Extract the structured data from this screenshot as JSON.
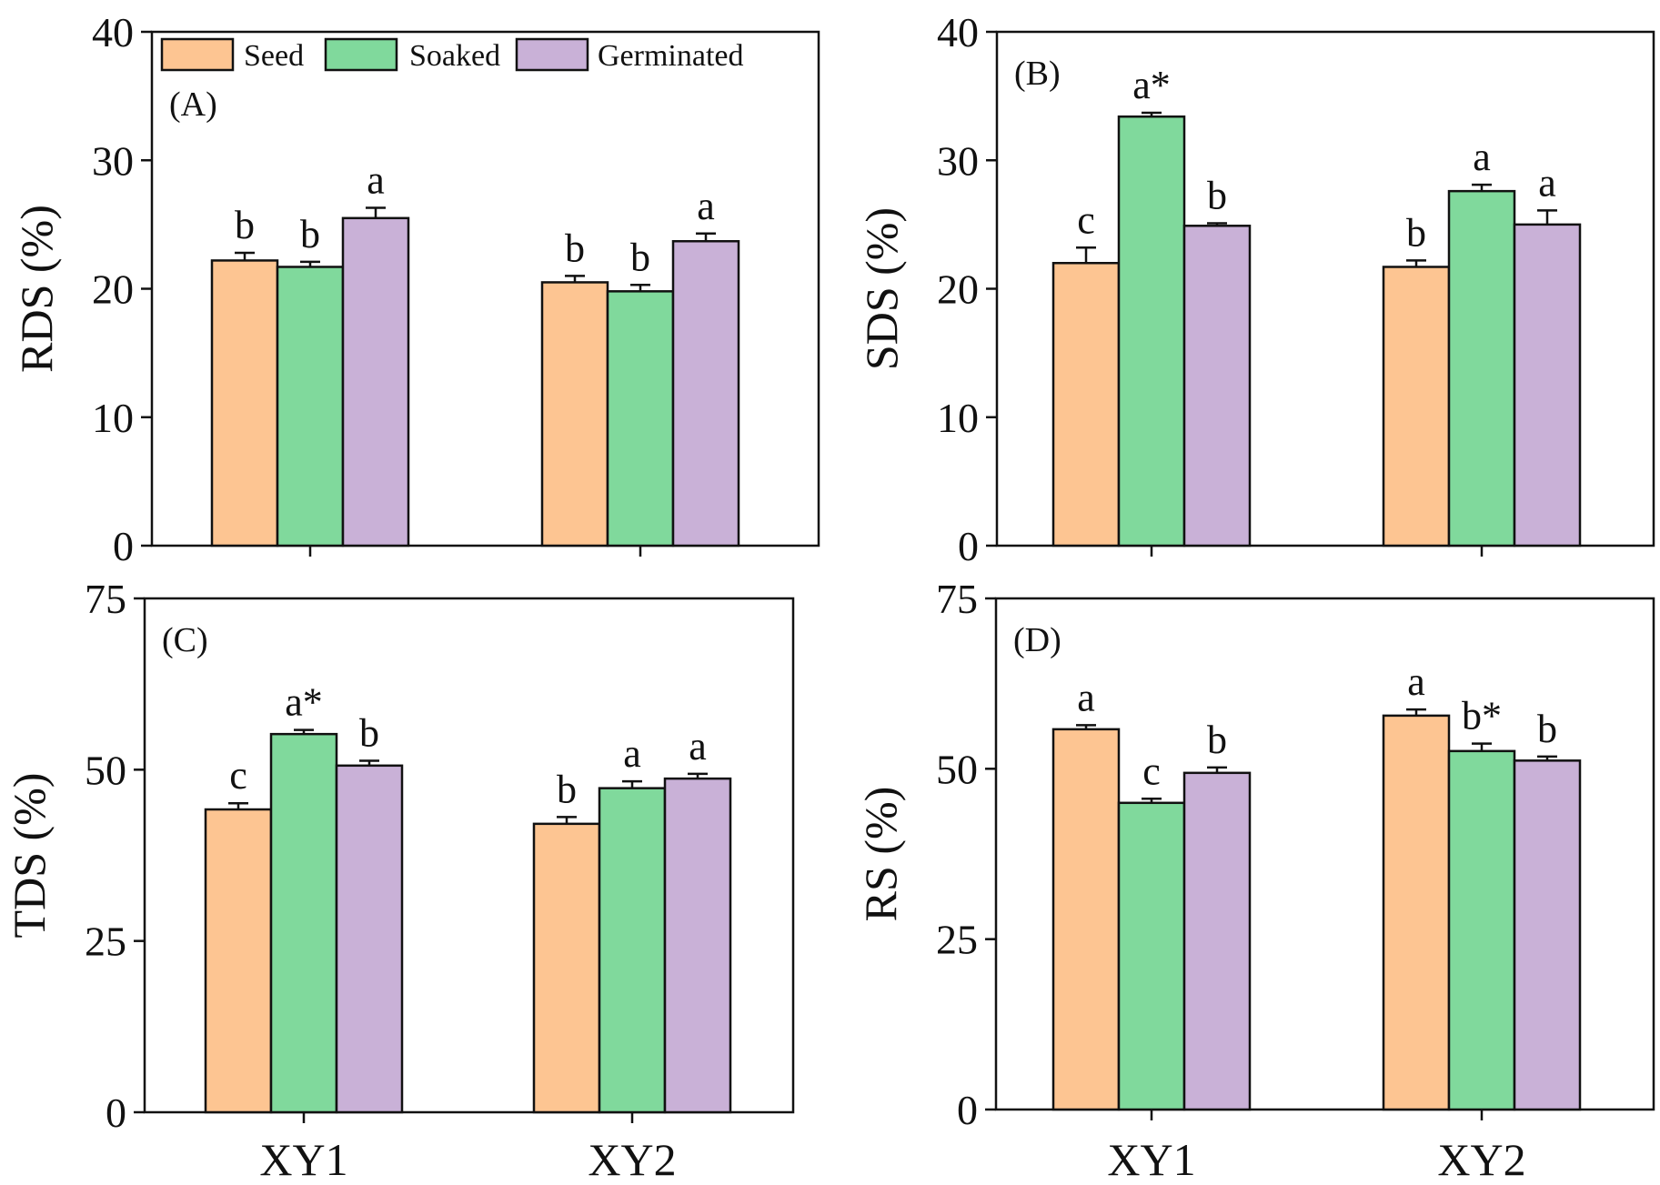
{
  "chart_data": [
    {
      "type": "bar",
      "panel_label": "(A)",
      "ylabel": "RDS (%)",
      "ylim": [
        0,
        40
      ],
      "yticks": [
        "0",
        "10",
        "20",
        "30",
        "40"
      ],
      "xtick_labels": [
        "",
        ""
      ],
      "categories": [
        "XY1",
        "XY2"
      ],
      "legend": "top-left",
      "series": [
        {
          "name": "Seed",
          "values": [
            22.2,
            20.5
          ],
          "errors": [
            0.6,
            0.5
          ],
          "sig": [
            "b",
            "b"
          ]
        },
        {
          "name": "Soaked",
          "values": [
            21.7,
            19.8
          ],
          "errors": [
            0.4,
            0.5
          ],
          "sig": [
            "b",
            "b"
          ]
        },
        {
          "name": "Germinated",
          "values": [
            25.5,
            23.7
          ],
          "errors": [
            0.8,
            0.6
          ],
          "sig": [
            "a",
            "a"
          ]
        }
      ]
    },
    {
      "type": "bar",
      "panel_label": "(B)",
      "ylabel": "SDS (%)",
      "ylim": [
        0,
        40
      ],
      "yticks": [
        "0",
        "10",
        "20",
        "30",
        "40"
      ],
      "xtick_labels": [
        "",
        ""
      ],
      "categories": [
        "XY1",
        "XY2"
      ],
      "series": [
        {
          "name": "Seed",
          "values": [
            22.0,
            21.7
          ],
          "errors": [
            1.2,
            0.5
          ],
          "sig": [
            "c",
            "b"
          ]
        },
        {
          "name": "Soaked",
          "values": [
            33.4,
            27.6
          ],
          "errors": [
            0.3,
            0.5
          ],
          "sig": [
            "a*",
            "a"
          ]
        },
        {
          "name": "Germinated",
          "values": [
            24.9,
            25.0
          ],
          "errors": [
            0.2,
            1.1
          ],
          "sig": [
            "b",
            "a"
          ]
        }
      ]
    },
    {
      "type": "bar",
      "panel_label": "(C)",
      "ylabel": "TDS (%)",
      "ylim": [
        0,
        75
      ],
      "yticks": [
        "0",
        "25",
        "50",
        "75"
      ],
      "xtick_labels": [
        "XY1",
        "XY2"
      ],
      "categories": [
        "XY1",
        "XY2"
      ],
      "series": [
        {
          "name": "Seed",
          "values": [
            44.2,
            42.1
          ],
          "errors": [
            0.9,
            1.0
          ],
          "sig": [
            "c",
            "b"
          ]
        },
        {
          "name": "Soaked",
          "values": [
            55.2,
            47.3
          ],
          "errors": [
            0.6,
            1.0
          ],
          "sig": [
            "a*",
            "a"
          ]
        },
        {
          "name": "Germinated",
          "values": [
            50.6,
            48.7
          ],
          "errors": [
            0.7,
            0.7
          ],
          "sig": [
            "b",
            "a"
          ]
        }
      ]
    },
    {
      "type": "bar",
      "panel_label": "(D)",
      "ylabel": "RS (%)",
      "ylim": [
        0,
        75
      ],
      "yticks": [
        "0",
        "25",
        "50",
        "75"
      ],
      "xtick_labels": [
        "XY1",
        "XY2"
      ],
      "categories": [
        "XY1",
        "XY2"
      ],
      "series": [
        {
          "name": "Seed",
          "values": [
            55.8,
            57.8
          ],
          "errors": [
            0.6,
            0.9
          ],
          "sig": [
            "a",
            "a"
          ]
        },
        {
          "name": "Soaked",
          "values": [
            45.0,
            52.6
          ],
          "errors": [
            0.6,
            1.1
          ],
          "sig": [
            "c",
            "b*"
          ]
        },
        {
          "name": "Germinated",
          "values": [
            49.4,
            51.2
          ],
          "errors": [
            0.8,
            0.6
          ],
          "sig": [
            "b",
            "b"
          ]
        }
      ]
    }
  ],
  "legend": {
    "entries": [
      {
        "label": "Seed",
        "color": "#FDC592"
      },
      {
        "label": "Soaked",
        "color": "#80D99C"
      },
      {
        "label": "Germinated",
        "color": "#C9B1D7"
      }
    ]
  },
  "colors": {
    "Seed": "#FDC592",
    "Soaked": "#80D99C",
    "Germinated": "#C9B1D7",
    "axis": "#111111"
  }
}
